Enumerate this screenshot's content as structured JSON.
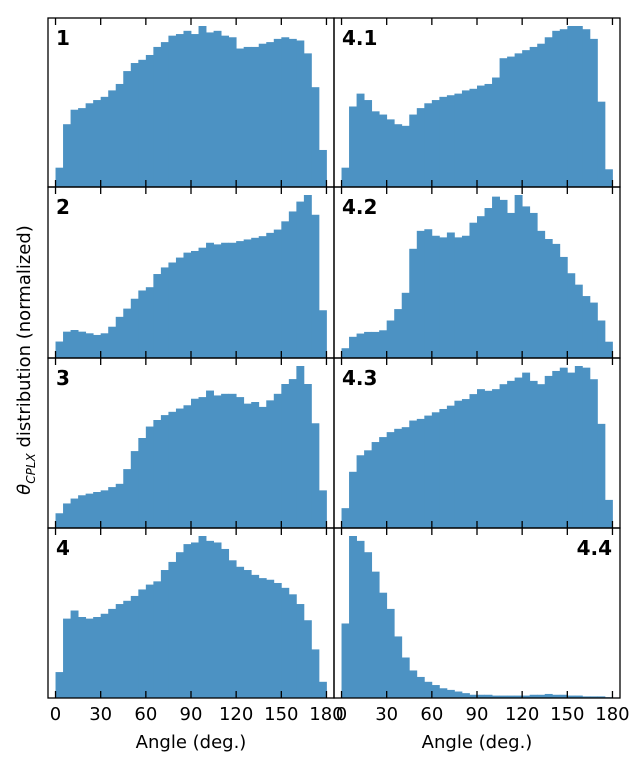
{
  "ylabel_symbol": "θ",
  "ylabel_subscript": "CPLX",
  "ylabel_rest": " distribution (normalized)",
  "colors": {
    "bar": "#4c92c3",
    "axis": "#000000"
  },
  "chart_data": {
    "type": "bar",
    "layout": "4x2 grid of histogram panels",
    "bin_width": 5,
    "xlim": [
      -5,
      185
    ],
    "xticks": [
      0,
      30,
      60,
      90,
      120,
      150,
      180
    ],
    "xlabel": "Angle (deg.)",
    "ylabel": "θCPLX distribution (normalized)",
    "yticks_shown": false,
    "panels": [
      {
        "label": "1",
        "label_pos": "top-left",
        "column": 0,
        "row": 0,
        "values": [
          0.12,
          0.39,
          0.48,
          0.49,
          0.52,
          0.54,
          0.56,
          0.6,
          0.64,
          0.72,
          0.77,
          0.79,
          0.82,
          0.87,
          0.9,
          0.94,
          0.95,
          0.97,
          0.95,
          1.0,
          0.96,
          0.97,
          0.94,
          0.93,
          0.86,
          0.87,
          0.87,
          0.89,
          0.9,
          0.92,
          0.93,
          0.92,
          0.91,
          0.83,
          0.62,
          0.23
        ]
      },
      {
        "label": "4.1",
        "label_pos": "top-left",
        "column": 1,
        "row": 0,
        "values": [
          0.12,
          0.5,
          0.58,
          0.54,
          0.47,
          0.45,
          0.42,
          0.39,
          0.38,
          0.45,
          0.49,
          0.52,
          0.54,
          0.56,
          0.57,
          0.58,
          0.6,
          0.61,
          0.63,
          0.64,
          0.68,
          0.8,
          0.81,
          0.83,
          0.85,
          0.87,
          0.89,
          0.93,
          0.97,
          0.98,
          1.0,
          1.0,
          0.98,
          0.92,
          0.53,
          0.11
        ]
      },
      {
        "label": "2",
        "label_pos": "top-left",
        "column": 0,
        "row": 1,
        "values": [
          0.1,
          0.16,
          0.17,
          0.16,
          0.15,
          0.14,
          0.15,
          0.19,
          0.25,
          0.3,
          0.36,
          0.41,
          0.43,
          0.51,
          0.55,
          0.58,
          0.61,
          0.64,
          0.65,
          0.67,
          0.7,
          0.69,
          0.7,
          0.7,
          0.71,
          0.72,
          0.73,
          0.74,
          0.76,
          0.78,
          0.83,
          0.89,
          0.95,
          0.99,
          0.87,
          0.29
        ]
      },
      {
        "label": "4.2",
        "label_pos": "top-left",
        "column": 1,
        "row": 1,
        "values": [
          0.06,
          0.13,
          0.15,
          0.16,
          0.16,
          0.17,
          0.23,
          0.3,
          0.4,
          0.67,
          0.78,
          0.79,
          0.75,
          0.74,
          0.77,
          0.74,
          0.75,
          0.83,
          0.87,
          0.92,
          0.99,
          0.97,
          0.89,
          1.0,
          0.93,
          0.89,
          0.78,
          0.73,
          0.7,
          0.62,
          0.52,
          0.45,
          0.38,
          0.34,
          0.23,
          0.1
        ]
      },
      {
        "label": "3",
        "label_pos": "top-left",
        "column": 0,
        "row": 2,
        "values": [
          0.09,
          0.15,
          0.18,
          0.2,
          0.21,
          0.22,
          0.23,
          0.25,
          0.27,
          0.36,
          0.47,
          0.55,
          0.62,
          0.66,
          0.69,
          0.71,
          0.73,
          0.75,
          0.79,
          0.8,
          0.84,
          0.81,
          0.82,
          0.82,
          0.8,
          0.76,
          0.77,
          0.74,
          0.78,
          0.82,
          0.88,
          0.91,
          0.99,
          0.88,
          0.64,
          0.23
        ]
      },
      {
        "label": "4.3",
        "label_pos": "top-left",
        "column": 1,
        "row": 2,
        "values": [
          0.12,
          0.34,
          0.44,
          0.47,
          0.52,
          0.55,
          0.58,
          0.6,
          0.61,
          0.65,
          0.66,
          0.68,
          0.7,
          0.72,
          0.74,
          0.77,
          0.78,
          0.81,
          0.84,
          0.83,
          0.84,
          0.87,
          0.89,
          0.91,
          0.94,
          0.89,
          0.87,
          0.92,
          0.95,
          0.97,
          0.94,
          0.98,
          0.97,
          0.9,
          0.63,
          0.17
        ]
      },
      {
        "label": "4",
        "label_pos": "top-left",
        "column": 0,
        "row": 3,
        "values": [
          0.16,
          0.49,
          0.54,
          0.5,
          0.49,
          0.5,
          0.52,
          0.55,
          0.58,
          0.6,
          0.63,
          0.67,
          0.7,
          0.72,
          0.79,
          0.84,
          0.9,
          0.95,
          0.96,
          1.0,
          0.97,
          0.96,
          0.92,
          0.85,
          0.81,
          0.79,
          0.76,
          0.74,
          0.73,
          0.71,
          0.68,
          0.64,
          0.58,
          0.48,
          0.3,
          0.1
        ]
      },
      {
        "label": "4.4",
        "label_pos": "top-right",
        "column": 1,
        "row": 3,
        "values": [
          0.46,
          1.0,
          0.97,
          0.9,
          0.78,
          0.65,
          0.55,
          0.38,
          0.25,
          0.17,
          0.13,
          0.1,
          0.08,
          0.06,
          0.05,
          0.04,
          0.03,
          0.02,
          0.02,
          0.02,
          0.015,
          0.015,
          0.015,
          0.015,
          0.015,
          0.02,
          0.02,
          0.025,
          0.02,
          0.02,
          0.015,
          0.015,
          0.01,
          0.01,
          0.01,
          0.005
        ]
      }
    ]
  }
}
